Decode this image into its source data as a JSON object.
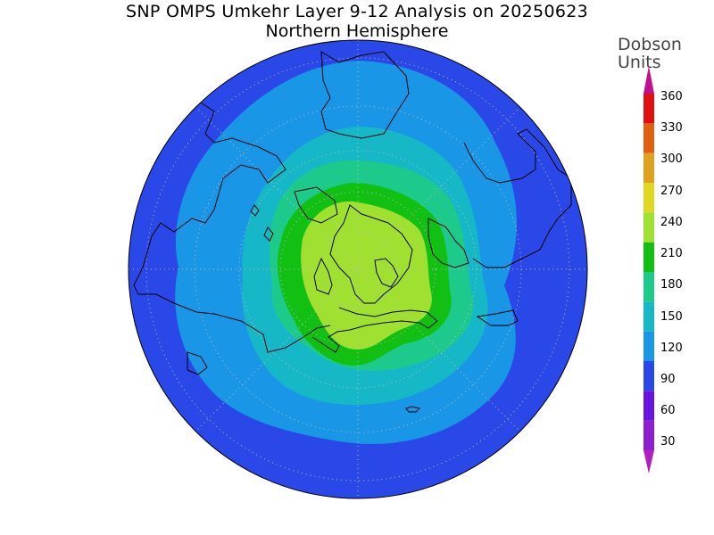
{
  "title": "SNP OMPS Umkehr Layer 9-12 Analysis on 20250623",
  "subtitle": "Northern Hemisphere",
  "units": {
    "line1": "Dobson",
    "line2": "Units"
  },
  "colorbar": {
    "ticks": [
      "30",
      "60",
      "90",
      "120",
      "150",
      "180",
      "210",
      "240",
      "270",
      "300",
      "330",
      "360"
    ],
    "colors": [
      "#8e1fd0",
      "#6a14e0",
      "#2a47e8",
      "#1a96e6",
      "#16b8c8",
      "#1ec98c",
      "#12c014",
      "#a0e030",
      "#e0d820",
      "#e0a020",
      "#e06010",
      "#e01010"
    ],
    "below_color": "#b020c0",
    "above_color": "#c01090"
  },
  "map": {
    "projection": "north polar stereographic"
  }
}
